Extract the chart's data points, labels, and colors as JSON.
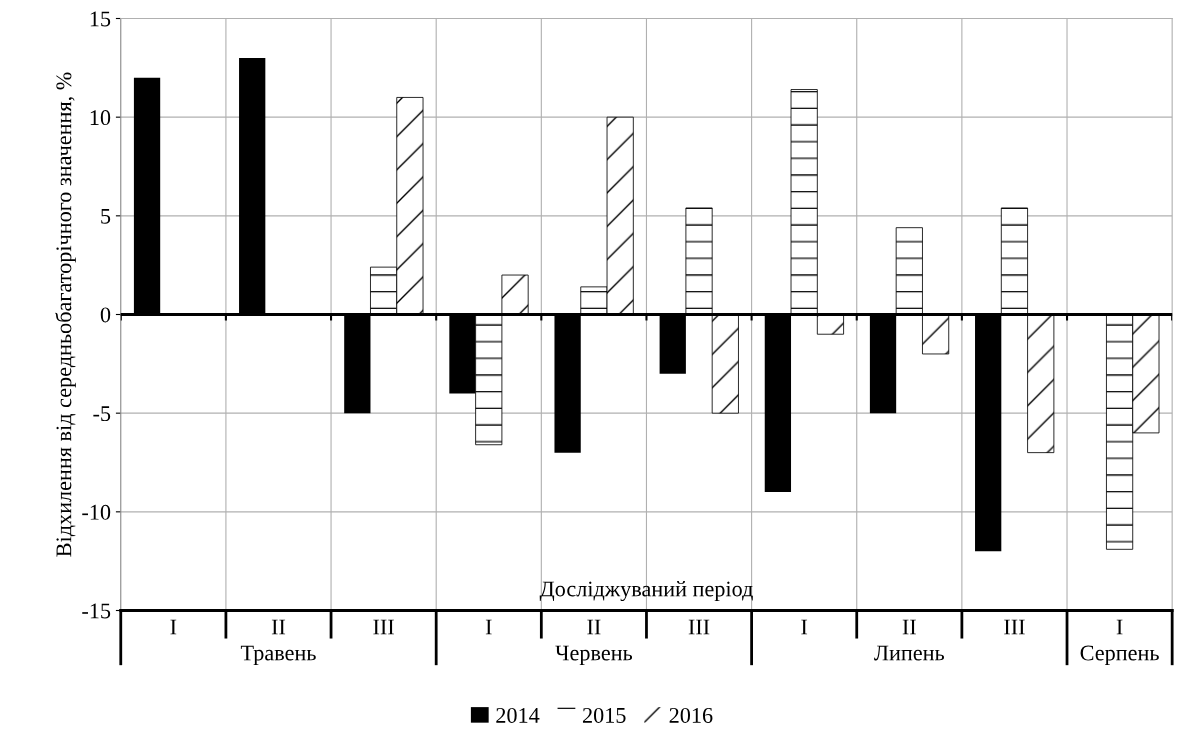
{
  "chart_data": {
    "type": "bar",
    "ylabel": "Відхилення від середньобагаторічного значення, %",
    "xlabel": "Досліджуваний період",
    "categories": [
      "I",
      "II",
      "III",
      "I",
      "II",
      "III",
      "I",
      "II",
      "III",
      "I"
    ],
    "series": [
      {
        "name": "2014",
        "color": "#000000",
        "values": [
          12,
          13,
          -5,
          -4,
          -7,
          -3,
          -9,
          -5,
          -12,
          null
        ]
      },
      {
        "name": "2015",
        "color": "#000000",
        "values": [
          null,
          null,
          2.4,
          -6.6,
          1.4,
          5.4,
          11.4,
          4.4,
          5.4,
          -11.9
        ]
      },
      {
        "name": "2016",
        "color": "#000000",
        "values": [
          null,
          null,
          11,
          2,
          10,
          -5,
          -1,
          -2,
          -7,
          -6
        ]
      }
    ],
    "annotations": [
      "Травень",
      "Червень",
      "Липень",
      "Серпень"
    ],
    "ylim": [
      -15,
      15
    ],
    "yticks": [
      -15,
      -10,
      -5,
      0,
      5,
      10,
      15
    ],
    "grid": true,
    "legend": "bottom"
  }
}
